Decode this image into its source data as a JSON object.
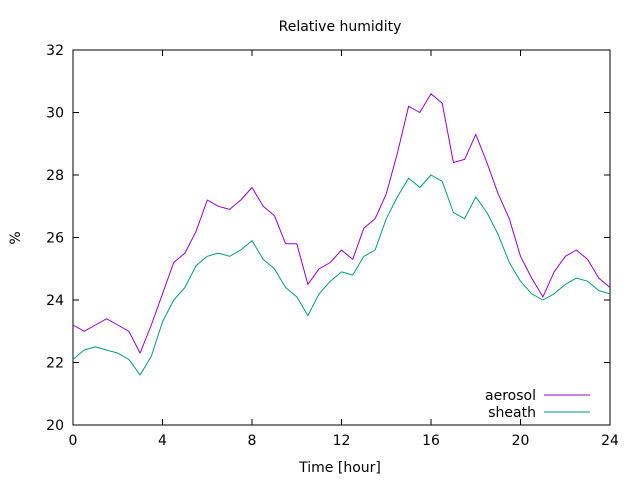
{
  "chart_data": {
    "type": "line",
    "title": "Relative humidity",
    "xlabel": "Time [hour]",
    "ylabel": "%",
    "xlim": [
      0,
      24
    ],
    "ylim": [
      20,
      32
    ],
    "xticks": [
      0,
      4,
      8,
      12,
      16,
      20,
      24
    ],
    "yticks": [
      20,
      22,
      24,
      26,
      28,
      30,
      32
    ],
    "grid": false,
    "legend_position": "bottom-right",
    "x": [
      0,
      0.5,
      1,
      1.5,
      2,
      2.5,
      3,
      3.5,
      4,
      4.5,
      5,
      5.5,
      6,
      6.5,
      7,
      7.5,
      8,
      8.5,
      9,
      9.5,
      10,
      10.5,
      11,
      11.5,
      12,
      12.5,
      13,
      13.5,
      14,
      14.5,
      15,
      15.5,
      16,
      16.5,
      17,
      17.5,
      18,
      18.5,
      19,
      19.5,
      20,
      20.5,
      21,
      21.5,
      22,
      22.5,
      23,
      23.5,
      24
    ],
    "series": [
      {
        "name": "aerosol",
        "color": "#9400d3",
        "values": [
          23.2,
          23.0,
          23.2,
          23.4,
          23.2,
          23.0,
          22.3,
          23.2,
          24.2,
          25.2,
          25.5,
          26.2,
          27.2,
          27.0,
          26.9,
          27.2,
          27.6,
          27.0,
          26.7,
          25.8,
          25.8,
          24.5,
          25.0,
          25.2,
          25.6,
          25.3,
          26.3,
          26.6,
          27.4,
          28.7,
          30.2,
          30.0,
          30.6,
          30.3,
          28.4,
          28.5,
          29.3,
          28.4,
          27.4,
          26.6,
          25.4,
          24.7,
          24.1,
          24.9,
          25.4,
          25.6,
          25.3,
          24.7,
          24.4
        ]
      },
      {
        "name": "sheath",
        "color": "#009e73",
        "values": [
          22.1,
          22.4,
          22.5,
          22.4,
          22.3,
          22.1,
          21.6,
          22.2,
          23.3,
          24.0,
          24.4,
          25.1,
          25.4,
          25.5,
          25.4,
          25.6,
          25.9,
          25.3,
          25.0,
          24.4,
          24.1,
          23.5,
          24.2,
          24.6,
          24.9,
          24.8,
          25.4,
          25.6,
          26.6,
          27.3,
          27.9,
          27.6,
          28.0,
          27.8,
          26.8,
          26.6,
          27.3,
          26.8,
          26.1,
          25.2,
          24.6,
          24.2,
          24.0,
          24.2,
          24.5,
          24.7,
          24.6,
          24.3,
          24.2
        ]
      }
    ]
  }
}
